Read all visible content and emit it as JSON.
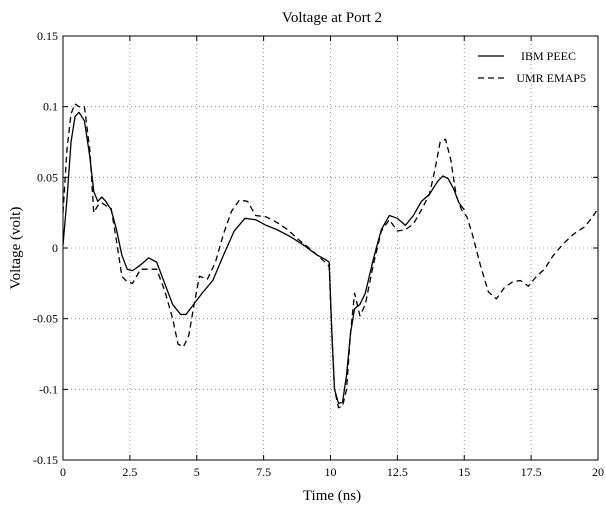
{
  "chart_data": {
    "type": "line",
    "title": "Voltage at Port 2",
    "xlabel": "Time (ns)",
    "ylabel": "Voltage (volt)",
    "xlim": [
      0,
      20
    ],
    "ylim": [
      -0.15,
      0.15
    ],
    "xticks": [
      "0",
      "2.5",
      "5",
      "7.5",
      "10",
      "12.5",
      "15",
      "17.5",
      "20"
    ],
    "yticks": [
      "0.15",
      "0.1",
      "0.05",
      "0",
      "-0.05",
      "-0.1",
      "-0.15"
    ],
    "grid": true,
    "legend_position": "top-right",
    "series": [
      {
        "name": "IBM PEEC",
        "style": "solid",
        "color": "#000000",
        "x": [
          0,
          0.15,
          0.3,
          0.45,
          0.6,
          0.8,
          1.0,
          1.15,
          1.3,
          1.45,
          1.6,
          1.8,
          2.0,
          2.2,
          2.4,
          2.6,
          2.9,
          3.2,
          3.5,
          3.8,
          4.1,
          4.4,
          4.6,
          4.8,
          5.2,
          5.6,
          6.0,
          6.4,
          6.8,
          7.2,
          7.6,
          8.0,
          8.5,
          9.0,
          9.5,
          9.8,
          9.95,
          10.05,
          10.15,
          10.3,
          10.45,
          10.6,
          10.75,
          10.9,
          11.1,
          11.3,
          11.6,
          11.9,
          12.2,
          12.5,
          12.8,
          13.1,
          13.4,
          13.7,
          14.0,
          14.2,
          14.4,
          14.6,
          14.8,
          15.0
        ],
        "y": [
          0.002,
          0.035,
          0.075,
          0.093,
          0.096,
          0.09,
          0.065,
          0.04,
          0.033,
          0.036,
          0.033,
          0.027,
          0.013,
          -0.005,
          -0.015,
          -0.016,
          -0.012,
          -0.007,
          -0.01,
          -0.025,
          -0.04,
          -0.047,
          -0.047,
          -0.042,
          -0.032,
          -0.023,
          -0.005,
          0.012,
          0.021,
          0.02,
          0.016,
          0.013,
          0.008,
          0.002,
          -0.005,
          -0.008,
          -0.01,
          -0.06,
          -0.1,
          -0.11,
          -0.109,
          -0.09,
          -0.06,
          -0.043,
          -0.04,
          -0.032,
          -0.008,
          0.013,
          0.023,
          0.021,
          0.016,
          0.023,
          0.033,
          0.038,
          0.047,
          0.051,
          0.049,
          0.042,
          0.032,
          0.027
        ]
      },
      {
        "name": "UMR EMAP5",
        "style": "dashed",
        "color": "#000000",
        "x": [
          0,
          0.15,
          0.3,
          0.45,
          0.6,
          0.8,
          1.0,
          1.15,
          1.3,
          1.45,
          1.6,
          1.8,
          2.0,
          2.2,
          2.4,
          2.6,
          2.9,
          3.2,
          3.5,
          3.8,
          4.1,
          4.3,
          4.5,
          4.7,
          4.9,
          5.1,
          5.4,
          5.7,
          6.0,
          6.3,
          6.6,
          6.9,
          7.2,
          7.6,
          8.0,
          8.4,
          8.8,
          9.2,
          9.5,
          9.8,
          9.95,
          10.05,
          10.15,
          10.3,
          10.45,
          10.6,
          10.75,
          10.9,
          11.1,
          11.3,
          11.6,
          11.9,
          12.2,
          12.5,
          12.8,
          13.1,
          13.4,
          13.7,
          13.9,
          14.1,
          14.3,
          14.5,
          14.7,
          14.9,
          15.1,
          15.3,
          15.6,
          15.9,
          16.2,
          16.5,
          16.8,
          17.1,
          17.4,
          17.7,
          18.0,
          18.3,
          18.7,
          19.1,
          19.5,
          19.8,
          20.0
        ],
        "y": [
          0.025,
          0.07,
          0.095,
          0.102,
          0.1,
          0.1,
          0.07,
          0.025,
          0.03,
          0.032,
          0.03,
          0.028,
          0.005,
          -0.02,
          -0.024,
          -0.025,
          -0.015,
          -0.015,
          -0.015,
          -0.03,
          -0.05,
          -0.068,
          -0.07,
          -0.062,
          -0.04,
          -0.02,
          -0.022,
          -0.01,
          0.01,
          0.026,
          0.034,
          0.033,
          0.023,
          0.022,
          0.018,
          0.013,
          0.006,
          0.0,
          -0.005,
          -0.01,
          -0.013,
          -0.06,
          -0.1,
          -0.113,
          -0.112,
          -0.1,
          -0.06,
          -0.032,
          -0.048,
          -0.04,
          -0.012,
          0.012,
          0.02,
          0.012,
          0.013,
          0.017,
          0.027,
          0.038,
          0.055,
          0.075,
          0.077,
          0.062,
          0.037,
          0.027,
          0.022,
          0.01,
          -0.012,
          -0.031,
          -0.036,
          -0.028,
          -0.024,
          -0.023,
          -0.027,
          -0.02,
          -0.015,
          -0.006,
          0.003,
          0.01,
          0.015,
          0.022,
          0.028
        ]
      }
    ]
  }
}
